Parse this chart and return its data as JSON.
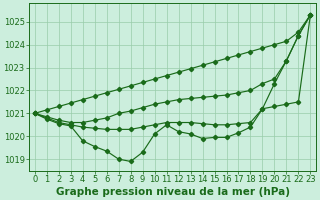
{
  "title": "Graphe pression niveau de la mer (hPa)",
  "background_color": "#cceedd",
  "grid_color": "#99ccaa",
  "line_color": "#1a6b1a",
  "hours": [
    0,
    1,
    2,
    3,
    4,
    5,
    6,
    7,
    8,
    9,
    10,
    11,
    12,
    13,
    14,
    15,
    16,
    17,
    18,
    19,
    20,
    21,
    22,
    23
  ],
  "x_labels": [
    "0",
    "1",
    "2",
    "3",
    "4",
    "5",
    "6",
    "7",
    "8",
    "9",
    "10",
    "11",
    "12",
    "13",
    "14",
    "15",
    "16",
    "17",
    "18",
    "19",
    "20",
    "21",
    "22",
    "23"
  ],
  "series_straight": [
    1021.0,
    1021.15,
    1021.3,
    1021.45,
    1021.6,
    1021.75,
    1021.9,
    1022.05,
    1022.2,
    1022.35,
    1022.5,
    1022.65,
    1022.8,
    1022.95,
    1023.1,
    1023.25,
    1023.4,
    1023.55,
    1023.7,
    1023.85,
    1024.0,
    1024.15,
    1024.55,
    1025.3
  ],
  "series_upper_mid": [
    1021.0,
    1020.85,
    1020.7,
    1020.6,
    1020.6,
    1020.7,
    1020.8,
    1021.0,
    1021.1,
    1021.25,
    1021.4,
    1021.5,
    1021.6,
    1021.65,
    1021.7,
    1021.75,
    1021.8,
    1021.9,
    1022.0,
    1022.3,
    1022.5,
    1023.3,
    1024.4,
    1025.3
  ],
  "series_lower_mid": [
    1021.0,
    1020.8,
    1020.6,
    1020.5,
    1020.4,
    1020.35,
    1020.3,
    1020.3,
    1020.3,
    1020.4,
    1020.5,
    1020.6,
    1020.6,
    1020.6,
    1020.55,
    1020.5,
    1020.5,
    1020.55,
    1020.6,
    1021.2,
    1021.3,
    1021.4,
    1021.5,
    1025.3
  ],
  "series_dip": [
    1021.0,
    1020.75,
    1020.55,
    1020.45,
    1019.8,
    1019.55,
    1019.35,
    1019.0,
    1018.9,
    1019.3,
    1020.1,
    1020.5,
    1020.2,
    1020.1,
    1019.9,
    1019.95,
    1019.95,
    1020.15,
    1020.4,
    1021.2,
    1022.3,
    1023.3,
    1024.4,
    1025.3
  ],
  "ylim_min": 1018.5,
  "ylim_max": 1025.8,
  "yticks": [
    1019,
    1020,
    1021,
    1022,
    1023,
    1024,
    1025
  ],
  "title_fontsize": 7.5,
  "tick_fontsize": 6.0
}
